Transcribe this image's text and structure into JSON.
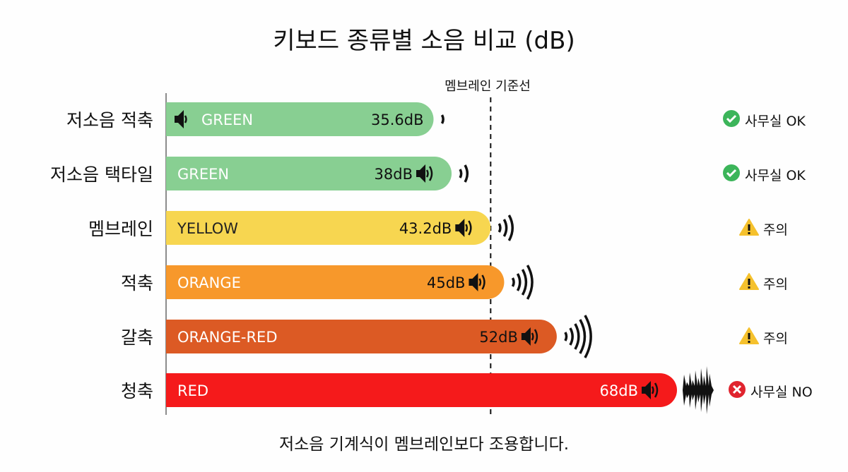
{
  "chart_data": {
    "type": "bar",
    "orientation": "horizontal",
    "title": "키보드 종류별 소음 비교 (dB)",
    "caption": "저소음 기계식이 멤브레인보다 조용합니다.",
    "unit": "dB",
    "reference_line": {
      "label": "멤브레인 기준선",
      "value": 43.2
    },
    "categories": [
      "저소음 적축",
      "저소음 택타일",
      "멤브레인",
      "적축",
      "갈축",
      "청축"
    ],
    "values": [
      35.6,
      38,
      43.2,
      45,
      52,
      68
    ],
    "value_labels": [
      "35.6dB",
      "38dB",
      "43.2dB",
      "45dB",
      "52dB",
      "68dB"
    ],
    "bar_labels": [
      "GREEN",
      "GREEN",
      "YELLOW",
      "ORANGE",
      "ORANGE-RED",
      "RED"
    ],
    "colors": [
      "#88cf92",
      "#88cf92",
      "#f7d650",
      "#f7982b",
      "#dc5a24",
      "#f51a1b"
    ],
    "status": [
      {
        "icon": "check-icon",
        "text": "사무실 OK",
        "color": "#3cb55a"
      },
      {
        "icon": "check-icon",
        "text": "사무실 OK",
        "color": "#3cb55a"
      },
      {
        "icon": "warning-icon",
        "text": "주의",
        "color": "#f5c12d"
      },
      {
        "icon": "warning-icon",
        "text": "주의",
        "color": "#f5c12d"
      },
      {
        "icon": "warning-icon",
        "text": "주의",
        "color": "#f5c12d"
      },
      {
        "icon": "x-icon",
        "text": "사무실 NO",
        "color": "#e0242e"
      }
    ],
    "grid": false,
    "legend": "none"
  }
}
